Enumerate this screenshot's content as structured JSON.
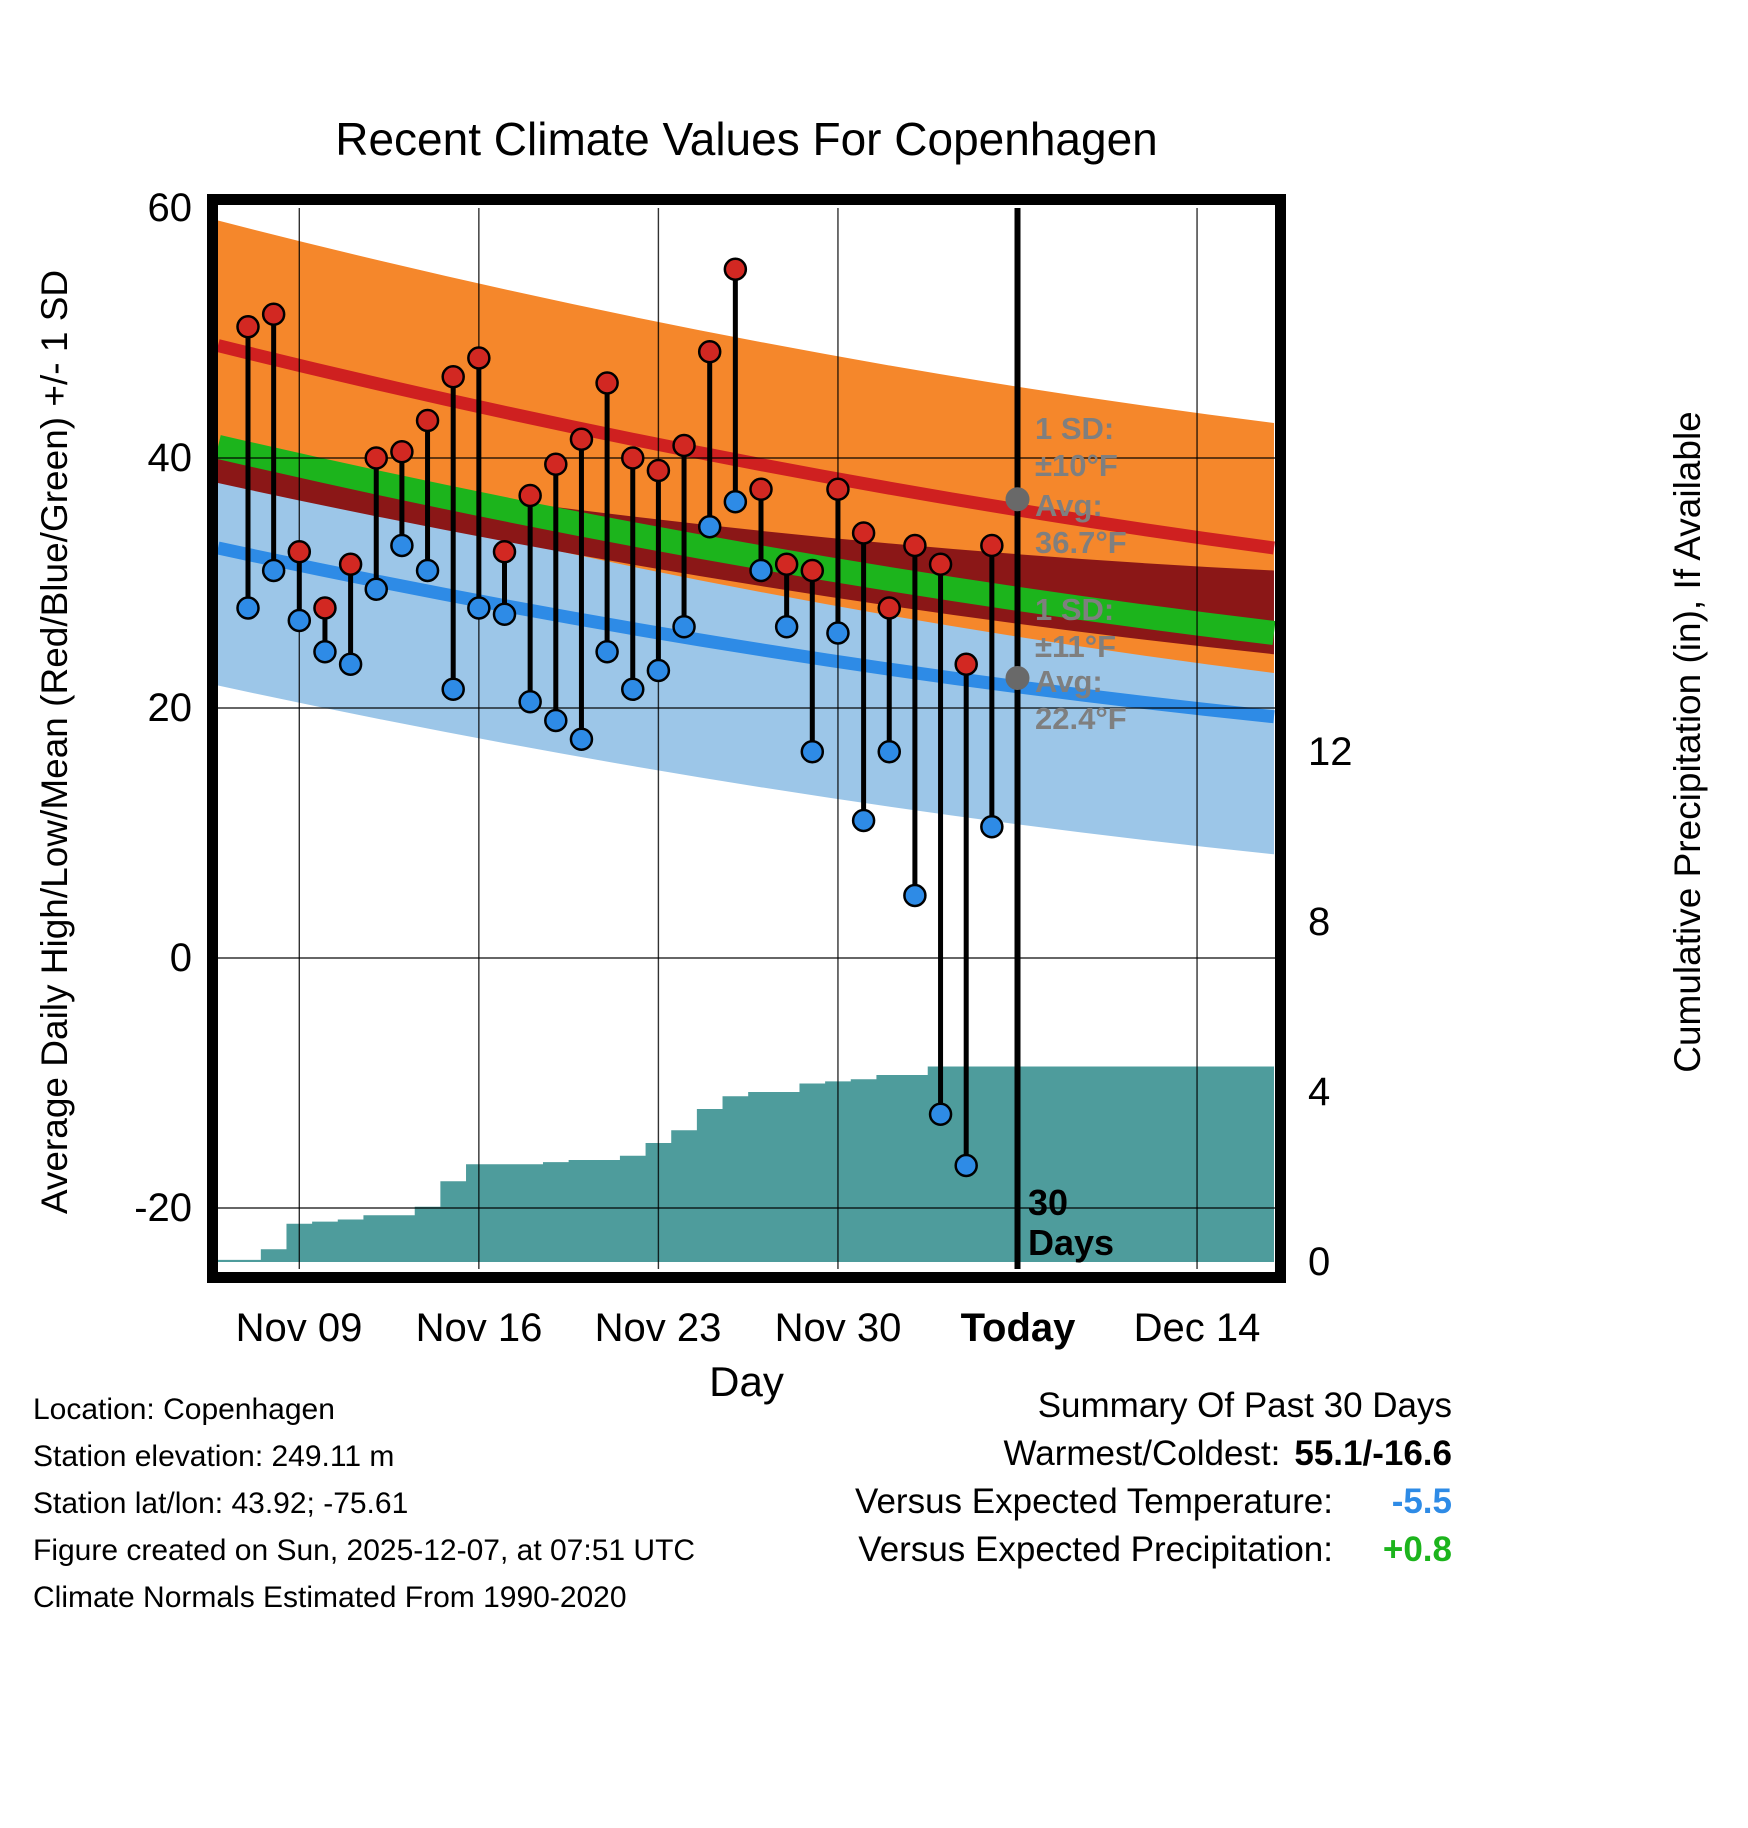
{
  "title": "Recent Climate Values For Copenhagen",
  "chart_data": {
    "type": "line",
    "title": "Recent Climate Values For Copenhagen",
    "xlabel": "Day",
    "ylabel": "Average Daily High/Low/Mean (Red/Blue/Green) +/- 1 SD",
    "y2label": "Cumulative Precipitation (in), If Available",
    "left_ticks": [
      "60",
      "40",
      "20",
      "0",
      "-20"
    ],
    "right_ticks": [
      "12",
      "8",
      "4",
      "0"
    ],
    "x_ticks": [
      {
        "day": 2,
        "label": "Nov 09"
      },
      {
        "day": 9,
        "label": "Nov 16"
      },
      {
        "day": 16,
        "label": "Nov 23"
      },
      {
        "day": 23,
        "label": "Nov 30"
      },
      {
        "day": 30,
        "label": "Today"
      },
      {
        "day": 37,
        "label": "Dec 14"
      }
    ],
    "today_day": 30,
    "x": [
      "Nov 07",
      "Nov 08",
      "Nov 09",
      "Nov 10",
      "Nov 11",
      "Nov 12",
      "Nov 13",
      "Nov 14",
      "Nov 15",
      "Nov 16",
      "Nov 17",
      "Nov 18",
      "Nov 19",
      "Nov 20",
      "Nov 21",
      "Nov 22",
      "Nov 23",
      "Nov 24",
      "Nov 25",
      "Nov 26",
      "Nov 27",
      "Nov 28",
      "Nov 29",
      "Nov 30",
      "Dec 01",
      "Dec 02",
      "Dec 03",
      "Dec 04",
      "Dec 05",
      "Dec 06"
    ],
    "series": [
      {
        "name": "Daily High (°F)",
        "role": "high",
        "color": "#D22822",
        "values": [
          50.5,
          51.5,
          32.5,
          28,
          31.5,
          40,
          40.5,
          43,
          46.5,
          48,
          32.5,
          37,
          39.5,
          41.5,
          46,
          40,
          39,
          41,
          48.5,
          55.1,
          37.5,
          31.5,
          31,
          37.5,
          34,
          28,
          33,
          31.5,
          23.5,
          33
        ]
      },
      {
        "name": "Daily Low (°F)",
        "role": "low",
        "color": "#2E8BE6",
        "values": [
          28,
          31,
          27,
          24.5,
          23.5,
          29.5,
          33,
          31,
          21.5,
          28,
          27.5,
          20.5,
          19,
          17.5,
          24.5,
          21.5,
          23,
          26.5,
          34.5,
          36.5,
          31,
          26.5,
          16.5,
          26,
          11,
          16.5,
          5,
          -12.5,
          -16.6,
          10.5
        ]
      },
      {
        "name": "Cumulative Precipitation (in)",
        "role": "precip",
        "axis": "right",
        "color": "#4E9C9C",
        "values": [
          0.05,
          0.3,
          0.9,
          0.95,
          1.0,
          1.1,
          1.1,
          1.3,
          1.9,
          2.3,
          2.3,
          2.3,
          2.35,
          2.4,
          2.4,
          2.5,
          2.8,
          3.1,
          3.6,
          3.9,
          4.0,
          4.0,
          4.2,
          4.25,
          4.3,
          4.4,
          4.4,
          4.6,
          4.6,
          4.6
        ]
      }
    ],
    "climatology_bands": {
      "high": {
        "avg_start": 49,
        "avg_end": 32.8,
        "sd": 10,
        "band_color": "#F5872B",
        "line_color": "#CF2020"
      },
      "low": {
        "avg_start": 32.8,
        "avg_end": 19.3,
        "sd": 11,
        "band_color": "#9CC6E8",
        "line_color": "#2E8BE6"
      },
      "mean": {
        "avg_start": 40.9,
        "avg_end": 26.0,
        "line_color": "#1CB41C",
        "band_color": "#8B1717",
        "band_top_start": 40,
        "band_top_end": 31,
        "band_bottom_start": 38,
        "band_bottom_end": 24.3
      }
    },
    "today_markers": [
      {
        "value": 36.7
      },
      {
        "value": 22.4
      }
    ],
    "ylim_left": [
      -25,
      60.2
    ],
    "grid": true,
    "legend_position": "none"
  },
  "annotations": {
    "sd_high": [
      "1 SD:",
      "±10°F"
    ],
    "avg_high": [
      "Avg:",
      "36.7°F"
    ],
    "sd_low": [
      "1 SD:",
      "±11°F"
    ],
    "avg_low": [
      "Avg:",
      "22.4°F"
    ],
    "days_marker": [
      "30",
      "Days"
    ]
  },
  "footer_left": {
    "location": "Location: Copenhagen",
    "elevation": "Station elevation: 249.11 m",
    "latlon": "Station lat/lon: 43.92; -75.61",
    "created": "Figure created on Sun, 2025-12-07, at 07:51 UTC",
    "normals": "Climate Normals Estimated From 1990-2020"
  },
  "summary": {
    "title": "Summary Of Past 30 Days",
    "warmest_label": "Warmest/Coldest:",
    "warmest_value": "55.1/-16.6",
    "temp_label": "Versus Expected Temperature:",
    "temp_value": "-5.5",
    "precip_label": "Versus Expected Precipitation:",
    "precip_value": "+0.8"
  },
  "colors": {
    "high_band": "#F5872B",
    "high_line": "#CF2020",
    "low_band": "#9CC6E8",
    "low_line": "#2E8BE6",
    "mean_line": "#1CB41C",
    "mean_band": "#8B1717",
    "precip_fill": "#4E9C9C",
    "annotation_gray": "#7F7F7F",
    "marker_gray": "#696969",
    "temp_delta": "#2E8BE6",
    "precip_delta": "#1CB41C"
  }
}
